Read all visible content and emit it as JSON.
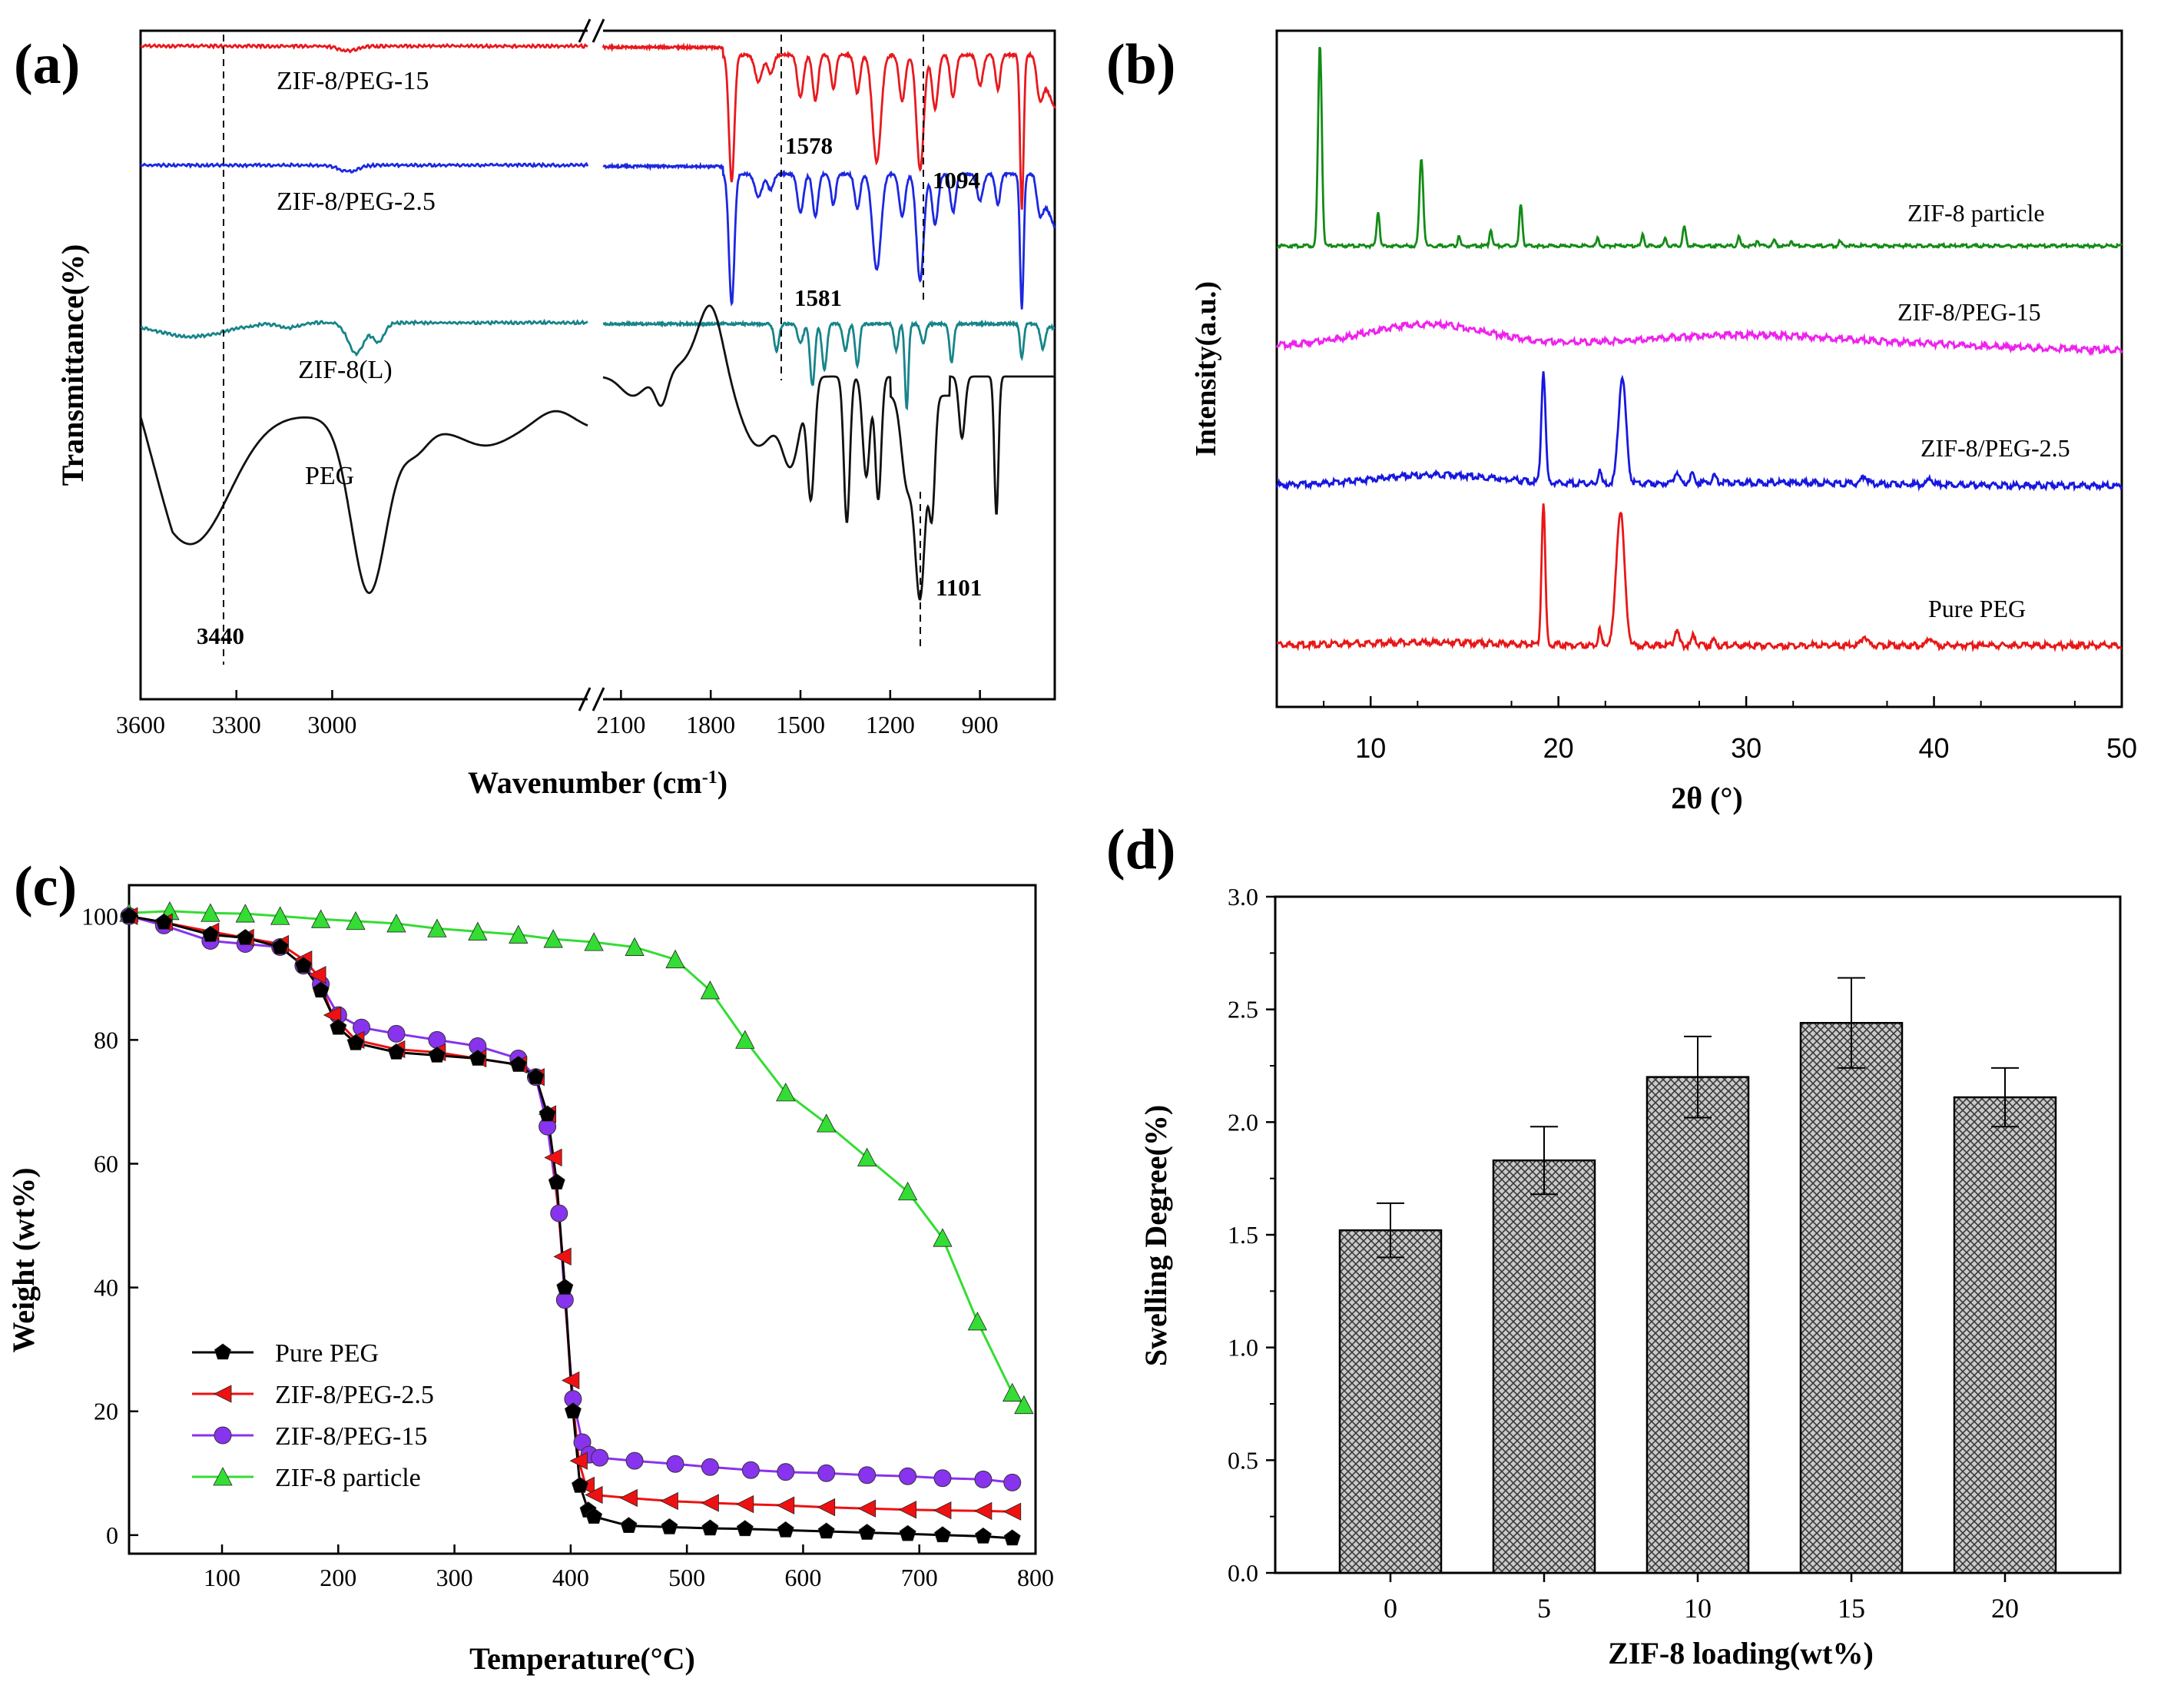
{
  "chart_data": [
    {
      "panel": "(a)",
      "type": "line",
      "xlabel": "Wavenumber (cm",
      "xlabel_sup": "-1",
      "xlabel_end": ")",
      "ylabel": "Transmittance(%)",
      "x_break": [
        2200,
        2160
      ],
      "xlim": [
        3600,
        650
      ],
      "xticks": [
        3600,
        3300,
        3000,
        2100,
        1800,
        1500,
        1200,
        900
      ],
      "series": [
        {
          "name": "ZIF-8/PEG-15",
          "color": "#e8191d"
        },
        {
          "name": "ZIF-8/PEG-2.5",
          "color": "#1c28e0"
        },
        {
          "name": "ZIF-8(L)",
          "color": "#17848a"
        },
        {
          "name": "PEG",
          "color": "#111111"
        }
      ],
      "annotations": [
        "1578",
        "1094",
        "1581",
        "1101",
        "3440"
      ]
    },
    {
      "panel": "(b)",
      "type": "line",
      "xlabel": "2θ (°)",
      "ylabel": "Intensity(a.u.)",
      "xlim": [
        5,
        50
      ],
      "xticks": [
        10,
        20,
        30,
        40,
        50
      ],
      "series": [
        {
          "name": "ZIF-8 particle",
          "color": "#138c16",
          "peaks": [
            7.3,
            10.4,
            12.7,
            14.7,
            16.4,
            18.0,
            22.1,
            24.5,
            26.7,
            29.6,
            32.4
          ]
        },
        {
          "name": "ZIF-8/PEG-15",
          "color": "#ee22ee"
        },
        {
          "name": "ZIF-8/PEG-2.5",
          "color": "#1717e0",
          "peaks": [
            19.2,
            23.4
          ]
        },
        {
          "name": "Pure PEG",
          "color": "#e81717",
          "peaks": [
            19.2,
            23.3
          ]
        }
      ]
    },
    {
      "panel": "(c)",
      "type": "line",
      "xlabel": "Temperature(°C)",
      "ylabel": "Weight (wt%)",
      "xlim": [
        20,
        800
      ],
      "ylim": [
        -3,
        105
      ],
      "xticks": [
        100,
        200,
        300,
        400,
        500,
        600,
        700,
        800
      ],
      "yticks": [
        0,
        20,
        40,
        60,
        80,
        100
      ],
      "legend_position": "lower-left",
      "series": [
        {
          "name": "Pure PEG",
          "color": "#000000",
          "marker": "pentagon",
          "x": [
            20,
            50,
            90,
            120,
            150,
            170,
            185,
            200,
            215,
            250,
            285,
            320,
            355,
            370,
            380,
            388,
            395,
            402,
            408,
            415,
            420,
            450,
            485,
            520,
            550,
            585,
            620,
            655,
            690,
            720,
            755,
            780
          ],
          "y": [
            100,
            99,
            97,
            96.5,
            95,
            92,
            88,
            82,
            79.5,
            78,
            77.5,
            77,
            76,
            74,
            68,
            57,
            40,
            20,
            8,
            4,
            3,
            1.5,
            1.3,
            1.1,
            1,
            0.8,
            0.6,
            0.4,
            0.2,
            0,
            -0.2,
            -0.5
          ]
        },
        {
          "name": "ZIF-8/PEG-2.5",
          "color": "#ee1111",
          "marker": "triangle-left",
          "x": [
            20,
            50,
            90,
            120,
            150,
            170,
            182,
            195,
            215,
            250,
            285,
            320,
            355,
            370,
            380,
            385,
            393,
            400,
            407,
            413,
            420,
            450,
            485,
            520,
            550,
            585,
            620,
            655,
            690,
            720,
            755,
            780
          ],
          "y": [
            100,
            99,
            97.5,
            96.5,
            95.5,
            93,
            90.5,
            84,
            80,
            78.5,
            78,
            77,
            76,
            74,
            68,
            61,
            45,
            25,
            12,
            8,
            6.5,
            6,
            5.5,
            5.2,
            5,
            4.8,
            4.5,
            4.3,
            4.1,
            4,
            3.9,
            3.8
          ]
        },
        {
          "name": "ZIF-8/PEG-15",
          "color": "#8833ee",
          "marker": "circle",
          "x": [
            20,
            50,
            90,
            120,
            150,
            170,
            185,
            200,
            220,
            250,
            285,
            320,
            355,
            370,
            380,
            390,
            395,
            402,
            410,
            416,
            425,
            455,
            490,
            520,
            555,
            585,
            620,
            655,
            690,
            720,
            755,
            780
          ],
          "y": [
            100,
            98.5,
            96,
            95.5,
            95,
            92,
            89,
            84,
            82,
            81,
            80,
            79,
            77,
            74,
            66,
            52,
            38,
            22,
            15,
            13,
            12.5,
            12,
            11.5,
            11,
            10.5,
            10.2,
            10,
            9.7,
            9.5,
            9.2,
            9,
            8.5
          ]
        },
        {
          "name": "ZIF-8 particle",
          "color": "#33dd33",
          "marker": "triangle-up",
          "x": [
            20,
            55,
            90,
            120,
            150,
            185,
            215,
            250,
            285,
            320,
            355,
            385,
            420,
            455,
            490,
            520,
            550,
            585,
            620,
            655,
            690,
            720,
            750,
            780,
            790
          ],
          "y": [
            100.5,
            100.8,
            100.5,
            100.4,
            100,
            99.5,
            99.2,
            98.8,
            98,
            97.5,
            97,
            96.3,
            95.8,
            95,
            93,
            88,
            80,
            71.5,
            66.5,
            61,
            55.5,
            48,
            34.5,
            23,
            21
          ]
        }
      ]
    },
    {
      "panel": "(d)",
      "type": "bar",
      "xlabel": "ZIF-8 loading(wt%)",
      "ylabel": "Swelling Degree(%)",
      "ylim": [
        0,
        3
      ],
      "yticks": [
        "0.0",
        "0.5",
        "1.0",
        "1.5",
        "2.0",
        "2.5",
        "3.0"
      ],
      "categories": [
        "0",
        "5",
        "10",
        "15",
        "20"
      ],
      "values": [
        1.52,
        1.83,
        2.2,
        2.44,
        2.11
      ],
      "errors": [
        0.12,
        0.15,
        0.18,
        0.2,
        0.13
      ]
    }
  ]
}
